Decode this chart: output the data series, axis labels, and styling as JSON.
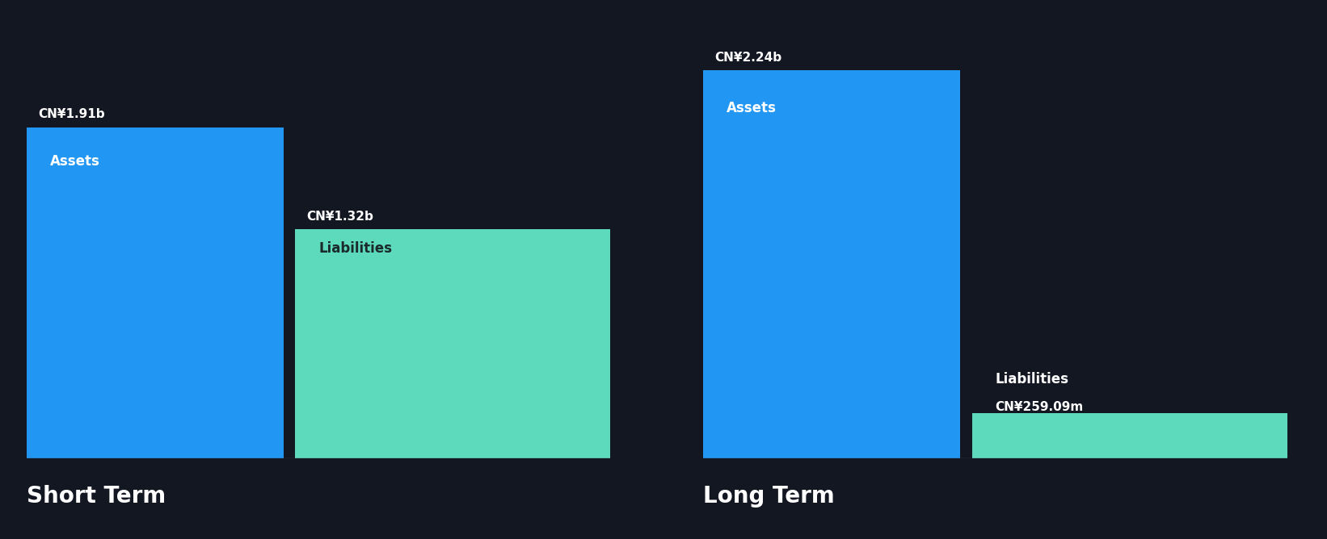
{
  "background_color": "#131722",
  "short_term": {
    "assets_value": 1.91,
    "liabilities_value": 1.32,
    "assets_label": "Assets",
    "liabilities_label": "Liabilities",
    "assets_value_label": "CN¥1.91b",
    "liabilities_value_label": "CN¥1.32b",
    "section_title": "Short Term"
  },
  "long_term": {
    "assets_value": 2.24,
    "liabilities_value": 0.25909,
    "assets_label": "Assets",
    "liabilities_label": "Liabilities",
    "assets_value_label": "CN¥2.24b",
    "liabilities_value_label": "CN¥259.09m",
    "section_title": "Long Term"
  },
  "assets_color": "#2196F3",
  "liabilities_color": "#5DDABC",
  "label_color_assets": "#ffffff",
  "label_color_liabilities": "#1a2a2a",
  "value_label_color": "#ffffff",
  "section_title_color": "#ffffff",
  "baseline_color": "#444455",
  "max_value": 2.24,
  "fig_width": 16.42,
  "fig_height": 6.68,
  "dpi": 100
}
